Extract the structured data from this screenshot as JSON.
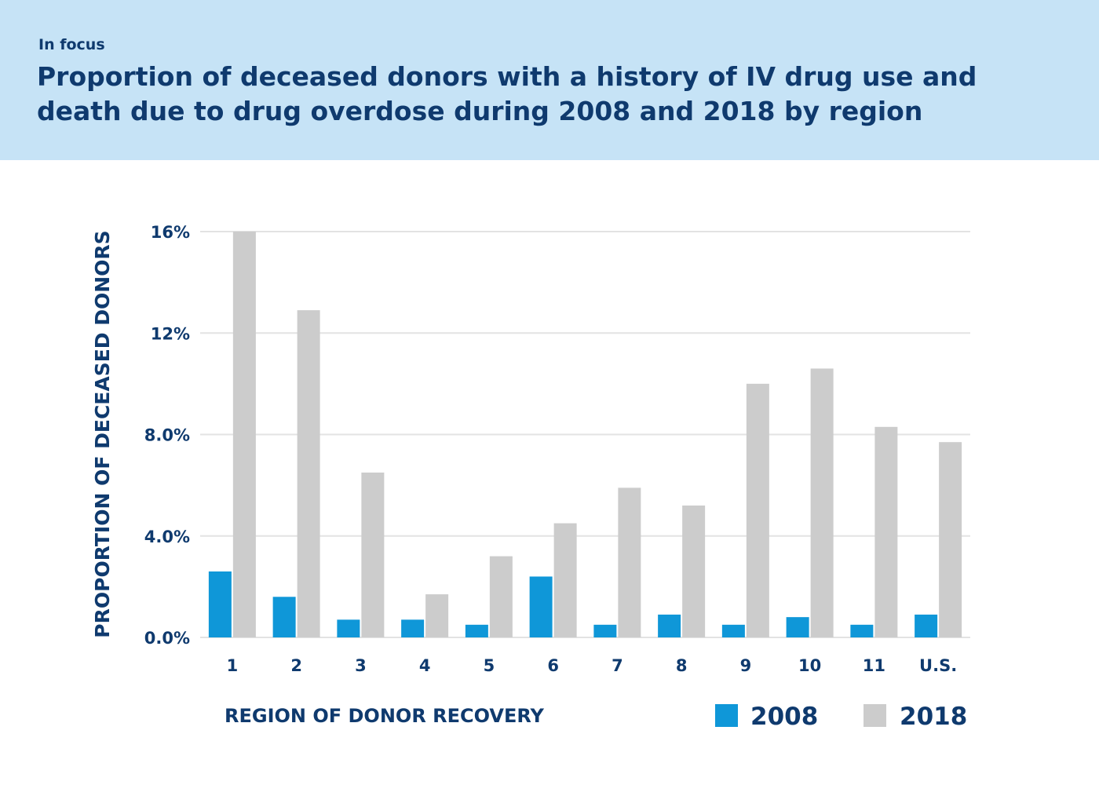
{
  "header": {
    "kicker": "In focus",
    "title": "Proportion of deceased donors with a history of IV drug use and death due to drug overdose during 2008 and 2018 by region"
  },
  "colors": {
    "header_bg": "#c6e3f6",
    "text": "#0f3a6e",
    "series_2008": "#0f97d8",
    "series_2018": "#cccccc",
    "grid": "#e3e3e3"
  },
  "chart_data": {
    "type": "bar",
    "xlabel": "REGION OF DONOR RECOVERY",
    "ylabel": "PROPORTION OF DECEASED DONORS",
    "categories": [
      "1",
      "2",
      "3",
      "4",
      "5",
      "6",
      "7",
      "8",
      "9",
      "10",
      "11",
      "U.S."
    ],
    "series": [
      {
        "name": "2008",
        "values": [
          2.6,
          1.6,
          0.7,
          0.7,
          0.5,
          2.4,
          0.5,
          0.9,
          0.5,
          0.8,
          0.5,
          0.9
        ]
      },
      {
        "name": "2018",
        "values": [
          16.0,
          12.9,
          6.5,
          1.7,
          3.2,
          4.5,
          5.9,
          5.2,
          10.0,
          10.6,
          8.3,
          7.7
        ]
      }
    ],
    "ylim": [
      0,
      16
    ],
    "yticks": [
      0,
      4,
      8,
      12,
      16
    ],
    "ytick_labels": [
      "0.0%",
      "4.0%",
      "8.0%",
      "12%",
      "16%"
    ],
    "grid": true,
    "legend": "bottom-right"
  }
}
